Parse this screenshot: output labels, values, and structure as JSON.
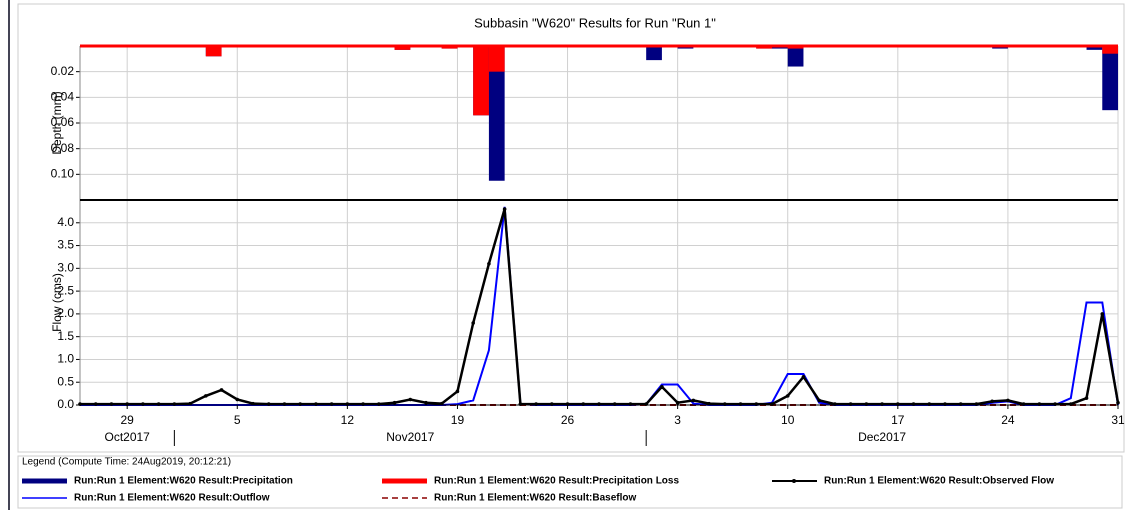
{
  "legend_title": "Legend (Compute Time: 24Aug2019, 20:12:21)",
  "chart_data": [
    {
      "type": "bar",
      "title": "Subbasin \"W620\" Results for Run \"Run 1\"",
      "ylabel": "Depth (mm)",
      "inverted": true,
      "grid": true,
      "xlim": [
        "2017-10-26",
        "2017-12-31"
      ],
      "ylim": [
        0,
        0.12
      ],
      "yticks": [
        0.02,
        0.04,
        0.06,
        0.08,
        {
          "value": 0.1,
          "label": "0.10"
        }
      ],
      "x": [
        "2017-11-03",
        "2017-11-15",
        "2017-11-18",
        "2017-11-20",
        "2017-11-21",
        "2017-12-01",
        "2017-12-03",
        "2017-12-08",
        "2017-12-09",
        "2017-12-10",
        "2017-12-11",
        "2017-12-23",
        "2017-12-29",
        "2017-12-30"
      ],
      "series": [
        {
          "name": "Run:Run 1 Element:W620 Result:Precipitation",
          "color": "#000080",
          "values": [
            0.008,
            0.003,
            0.002,
            0.054,
            0.105,
            0.011,
            0.002,
            0.002,
            0.002,
            0.016,
            0.001,
            0.002,
            0.003,
            0.05
          ]
        },
        {
          "name": "Run:Run 1 Element:W620 Result:Precipitation Loss",
          "color": "#ff0000",
          "values": [
            0.008,
            0.003,
            0.002,
            0.054,
            0.02,
            0.001,
            0.001,
            0.002,
            0.001,
            0.002,
            0.001,
            0.001,
            0.001,
            0.006
          ]
        }
      ]
    },
    {
      "type": "line",
      "ylabel": "Flow (cms)",
      "grid": true,
      "xlim": [
        "2017-10-26",
        "2017-12-31"
      ],
      "ylim": [
        0,
        4.5
      ],
      "yticks": [
        {
          "value": 0,
          "label": "0.0"
        },
        0.5,
        {
          "value": 1,
          "label": "1.0"
        },
        1.5,
        {
          "value": 2,
          "label": "2.0"
        },
        2.5,
        {
          "value": 3,
          "label": "3.0"
        },
        3.5,
        {
          "value": 4,
          "label": "4.0"
        }
      ],
      "xticks": [
        {
          "value": "2017-10-29",
          "label": "29"
        },
        {
          "value": "2017-11-05",
          "label": "5"
        },
        {
          "value": "2017-11-12",
          "label": "12"
        },
        {
          "value": "2017-11-19",
          "label": "19"
        },
        {
          "value": "2017-11-26",
          "label": "26"
        },
        {
          "value": "2017-12-03",
          "label": "3"
        },
        {
          "value": "2017-12-10",
          "label": "10"
        },
        {
          "value": "2017-12-17",
          "label": "17"
        },
        {
          "value": "2017-12-24",
          "label": "24"
        },
        {
          "value": "2017-12-31",
          "label": "31"
        }
      ],
      "month_ticks": [
        {
          "value": "2017-10",
          "label": "Oct2017"
        },
        {
          "value": "2017-11",
          "label": "Nov2017"
        },
        {
          "value": "2017-12",
          "label": "Dec2017"
        }
      ],
      "x": [
        "2017-10-26",
        "2017-10-27",
        "2017-10-28",
        "2017-10-29",
        "2017-10-30",
        "2017-10-31",
        "2017-11-01",
        "2017-11-02",
        "2017-11-03",
        "2017-11-04",
        "2017-11-05",
        "2017-11-06",
        "2017-11-07",
        "2017-11-08",
        "2017-11-09",
        "2017-11-10",
        "2017-11-11",
        "2017-11-12",
        "2017-11-13",
        "2017-11-14",
        "2017-11-15",
        "2017-11-16",
        "2017-11-17",
        "2017-11-18",
        "2017-11-19",
        "2017-11-20",
        "2017-11-21",
        "2017-11-22",
        "2017-11-23",
        "2017-11-24",
        "2017-11-25",
        "2017-11-26",
        "2017-11-27",
        "2017-11-28",
        "2017-11-29",
        "2017-11-30",
        "2017-12-01",
        "2017-12-02",
        "2017-12-03",
        "2017-12-04",
        "2017-12-05",
        "2017-12-06",
        "2017-12-07",
        "2017-12-08",
        "2017-12-09",
        "2017-12-10",
        "2017-12-11",
        "2017-12-12",
        "2017-12-13",
        "2017-12-14",
        "2017-12-15",
        "2017-12-16",
        "2017-12-17",
        "2017-12-18",
        "2017-12-19",
        "2017-12-20",
        "2017-12-21",
        "2017-12-22",
        "2017-12-23",
        "2017-12-24",
        "2017-12-25",
        "2017-12-26",
        "2017-12-27",
        "2017-12-28",
        "2017-12-29",
        "2017-12-30",
        "2017-12-31"
      ],
      "series": [
        {
          "name": "Run:Run 1 Element:W620 Result:Observed Flow",
          "color": "#000000",
          "markers": true,
          "values": [
            0.02,
            0.02,
            0.02,
            0.02,
            0.02,
            0.02,
            0.02,
            0.03,
            0.2,
            0.33,
            0.12,
            0.03,
            0.02,
            0.02,
            0.02,
            0.02,
            0.02,
            0.02,
            0.02,
            0.02,
            0.05,
            0.12,
            0.05,
            0.03,
            0.3,
            1.8,
            3.1,
            4.3,
            0.02,
            0.02,
            0.02,
            0.02,
            0.02,
            0.02,
            0.02,
            0.02,
            0.02,
            0.4,
            0.05,
            0.1,
            0.03,
            0.02,
            0.02,
            0.02,
            0.02,
            0.2,
            0.62,
            0.1,
            0.02,
            0.02,
            0.02,
            0.02,
            0.02,
            0.02,
            0.02,
            0.02,
            0.02,
            0.02,
            0.08,
            0.1,
            0.02,
            0.02,
            0.02,
            0.02,
            0.15,
            2.0,
            0.05
          ]
        },
        {
          "name": "Run:Run 1 Element:W620 Result:Outflow",
          "color": "#0000ff",
          "values": [
            0,
            0,
            0,
            0,
            0,
            0,
            0,
            0,
            0,
            0,
            0,
            0,
            0,
            0,
            0,
            0,
            0,
            0,
            0,
            0,
            0,
            0,
            0,
            0,
            0.02,
            0.1,
            1.2,
            4.35,
            0.02,
            0,
            0,
            0,
            0,
            0,
            0,
            0,
            0.02,
            0.45,
            0.45,
            0.03,
            0,
            0,
            0,
            0,
            0.05,
            0.68,
            0.68,
            0.05,
            0,
            0,
            0,
            0,
            0,
            0,
            0,
            0,
            0,
            0,
            0.05,
            0.08,
            0,
            0,
            0,
            0.15,
            2.25,
            2.25,
            0
          ]
        },
        {
          "name": "Run:Run 1 Element:W620 Result:Baseflow",
          "color": "#8b0000",
          "dash": true,
          "values": [
            0,
            0,
            0,
            0,
            0,
            0,
            0,
            0,
            0,
            0,
            0,
            0,
            0,
            0,
            0,
            0,
            0,
            0,
            0,
            0,
            0,
            0,
            0,
            0,
            0,
            0,
            0,
            0,
            0,
            0,
            0,
            0,
            0,
            0,
            0,
            0,
            0,
            0,
            0,
            0,
            0,
            0,
            0,
            0,
            0,
            0,
            0,
            0,
            0,
            0,
            0,
            0,
            0,
            0,
            0,
            0,
            0,
            0,
            0,
            0,
            0,
            0,
            0,
            0,
            0,
            0,
            0
          ]
        }
      ]
    }
  ]
}
